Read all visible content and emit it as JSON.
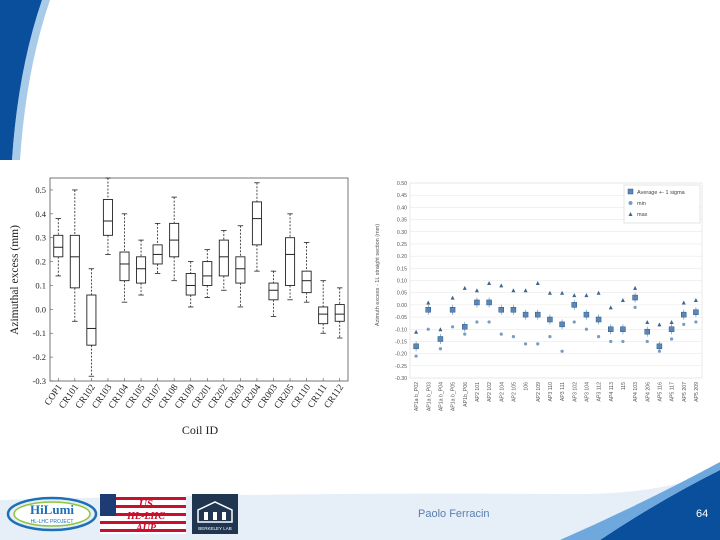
{
  "footer": {
    "author": "Paolo Ferracin",
    "page_number": "64"
  },
  "logos": {
    "hilumi_name": "HiLumi",
    "hilumi_sub": "HL-LHC PROJECT",
    "us_line1": "US",
    "us_line2": "HL-LHC",
    "us_line3": "AUP",
    "lbl_name": "BERKELEY LAB"
  },
  "colors": {
    "accent": "#1d6fb8",
    "slide_blue": "#0a4f9c",
    "footer_text": "#5b7fb0"
  },
  "chart_data": [
    {
      "type": "boxplot",
      "title": "",
      "xlabel": "Coil ID",
      "ylabel": "Azimuthal excess (mm)",
      "ylim": [
        -0.3,
        0.55
      ],
      "yticks": [
        "0.5",
        "0.4",
        "0.3",
        "0.2",
        "0.1",
        "0.0",
        "-0.1",
        "-0.2",
        "-0.3"
      ],
      "ytick_values": [
        0.5,
        0.4,
        0.3,
        0.2,
        0.1,
        0.0,
        -0.1,
        -0.2,
        -0.3
      ],
      "categories": [
        "COP1",
        "CR101",
        "CR102",
        "CR103",
        "CR104",
        "CR105",
        "CR107",
        "CR108",
        "CR109",
        "CR201",
        "CR202",
        "CR203",
        "CR204",
        "CR003",
        "CR205",
        "CR110",
        "CR111",
        "CR112"
      ],
      "boxes": [
        {
          "lo": 0.14,
          "q1": 0.22,
          "med": 0.26,
          "q3": 0.31,
          "hi": 0.38
        },
        {
          "lo": -0.05,
          "q1": 0.09,
          "med": 0.22,
          "q3": 0.31,
          "hi": 0.5
        },
        {
          "lo": -0.28,
          "q1": -0.15,
          "med": -0.08,
          "q3": 0.06,
          "hi": 0.17
        },
        {
          "lo": 0.23,
          "q1": 0.31,
          "med": 0.37,
          "q3": 0.46,
          "hi": 0.55
        },
        {
          "lo": 0.03,
          "q1": 0.12,
          "med": 0.19,
          "q3": 0.24,
          "hi": 0.4
        },
        {
          "lo": 0.06,
          "q1": 0.11,
          "med": 0.17,
          "q3": 0.22,
          "hi": 0.29
        },
        {
          "lo": 0.15,
          "q1": 0.19,
          "med": 0.23,
          "q3": 0.27,
          "hi": 0.36
        },
        {
          "lo": 0.12,
          "q1": 0.22,
          "med": 0.29,
          "q3": 0.36,
          "hi": 0.47
        },
        {
          "lo": 0.01,
          "q1": 0.06,
          "med": 0.1,
          "q3": 0.15,
          "hi": 0.2
        },
        {
          "lo": 0.05,
          "q1": 0.1,
          "med": 0.14,
          "q3": 0.2,
          "hi": 0.25
        },
        {
          "lo": 0.08,
          "q1": 0.14,
          "med": 0.22,
          "q3": 0.29,
          "hi": 0.33
        },
        {
          "lo": 0.01,
          "q1": 0.11,
          "med": 0.17,
          "q3": 0.22,
          "hi": 0.35
        },
        {
          "lo": 0.16,
          "q1": 0.27,
          "med": 0.38,
          "q3": 0.45,
          "hi": 0.53
        },
        {
          "lo": -0.03,
          "q1": 0.04,
          "med": 0.08,
          "q3": 0.11,
          "hi": 0.16
        },
        {
          "lo": 0.04,
          "q1": 0.1,
          "med": 0.23,
          "q3": 0.3,
          "hi": 0.4
        },
        {
          "lo": 0.03,
          "q1": 0.07,
          "med": 0.12,
          "q3": 0.16,
          "hi": 0.28
        },
        {
          "lo": -0.1,
          "q1": -0.06,
          "med": -0.02,
          "q3": 0.01,
          "hi": 0.12
        },
        {
          "lo": -0.12,
          "q1": -0.05,
          "med": -0.02,
          "q3": 0.02,
          "hi": 0.09
        }
      ]
    },
    {
      "type": "scatter",
      "title": "",
      "ylabel": "Azimuth excess - 1L straight section (mm)",
      "ylim": [
        -0.3,
        0.5
      ],
      "yticks": [
        "0.50",
        "0.45",
        "0.40",
        "0.35",
        "0.30",
        "0.25",
        "0.20",
        "0.15",
        "0.10",
        "0.05",
        "0.00",
        "-0.05",
        "-0.10",
        "-0.15",
        "-0.20",
        "-0.25",
        "-0.30"
      ],
      "ytick_values": [
        0.5,
        0.45,
        0.4,
        0.35,
        0.3,
        0.25,
        0.2,
        0.15,
        0.1,
        0.05,
        0.0,
        -0.05,
        -0.1,
        -0.15,
        -0.2,
        -0.25,
        -0.3
      ],
      "legend": [
        "Average +- 1 sigma",
        "min",
        "max"
      ],
      "legend_position": "top-right",
      "categories": [
        "AP1a b_P02",
        "AP1a b_P03",
        "AP1a b_P04",
        "AP1a b_P05",
        "AP1b_P06",
        "AP2 101",
        "AP2 102",
        "AP2 104",
        "AP2 105",
        "106",
        "AP2 109",
        "AP3 110",
        "AP3 111",
        "AP3 102",
        "AP3 104",
        "AP3 112",
        "AP4 113",
        "115",
        "AP4 103",
        "AP4 206",
        "AP5 116",
        "AP5 117",
        "AP5 207",
        "AP5 209"
      ],
      "series": [
        {
          "name": "Average",
          "values": [
            -0.17,
            -0.02,
            -0.14,
            -0.02,
            -0.09,
            0.01,
            0.01,
            -0.02,
            -0.02,
            -0.04,
            -0.04,
            -0.06,
            -0.08,
            0.0,
            -0.04,
            -0.06,
            -0.1,
            -0.1,
            0.03,
            -0.11,
            -0.17,
            -0.1,
            -0.04,
            -0.03
          ]
        },
        {
          "name": "min",
          "values": [
            -0.21,
            -0.1,
            -0.18,
            -0.09,
            -0.12,
            -0.07,
            -0.07,
            -0.12,
            -0.13,
            -0.16,
            -0.16,
            -0.13,
            -0.19,
            -0.07,
            -0.1,
            -0.13,
            -0.15,
            -0.15,
            -0.01,
            -0.15,
            -0.19,
            -0.14,
            -0.08,
            -0.07
          ]
        },
        {
          "name": "max",
          "values": [
            -0.11,
            0.01,
            -0.1,
            0.03,
            0.07,
            0.06,
            0.09,
            0.08,
            0.06,
            0.06,
            0.09,
            0.05,
            0.05,
            0.04,
            0.04,
            0.05,
            -0.01,
            0.02,
            0.07,
            -0.07,
            -0.08,
            -0.07,
            0.01,
            0.02
          ]
        }
      ]
    }
  ]
}
